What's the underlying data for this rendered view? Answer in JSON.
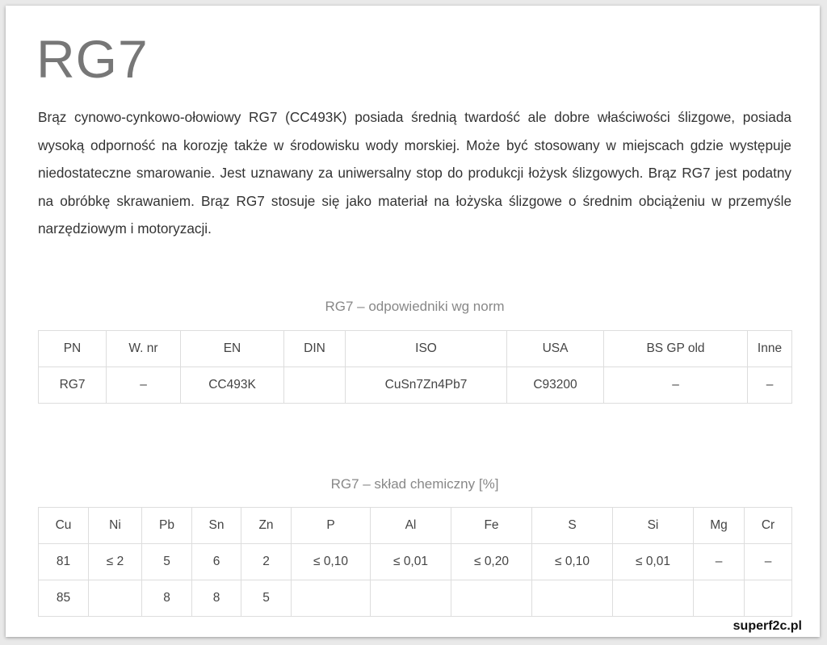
{
  "title": "RG7",
  "description": "Brąz cynowo-cynkowo-ołowiowy RG7 (CC493K) posiada średnią twardość ale dobre właściwości ślizgowe, posiada wysoką odporność na korozję także w środowisku wody morskiej. Może być stosowany w miejscach gdzie występuje niedostateczne smarowanie. Jest uznawany za uniwersalny stop do produkcji łożysk ślizgowych. Brąz RG7 jest podatny na obróbkę skrawaniem. Brąz RG7 stosuje się jako materiał na łożyska ślizgowe o średnim obciążeniu w przemyśle narzędziowym i motoryzacji.",
  "standards": {
    "caption": "RG7 – odpowiedniki wg norm",
    "headers": [
      "PN",
      "W. nr",
      "EN",
      "DIN",
      "ISO",
      "USA",
      "BS GP old",
      "Inne"
    ],
    "rows": [
      [
        "RG7",
        "–",
        "CC493K",
        "",
        "CuSn7Zn4Pb7",
        "C93200",
        "–",
        "–"
      ]
    ]
  },
  "composition": {
    "caption": "RG7 – skład chemiczny [%]",
    "headers": [
      "Cu",
      "Ni",
      "Pb",
      "Sn",
      "Zn",
      "P",
      "Al",
      "Fe",
      "S",
      "Si",
      "Mg",
      "Cr"
    ],
    "rows": [
      [
        "81",
        "≤ 2",
        "5",
        "6",
        "2",
        "≤ 0,10",
        "≤ 0,01",
        "≤ 0,20",
        "≤ 0,10",
        "≤ 0,01",
        "–",
        "–"
      ],
      [
        "85",
        "",
        "8",
        "8",
        "5",
        "",
        "",
        "",
        "",
        "",
        "",
        ""
      ]
    ]
  },
  "watermark": "superf2c.pl"
}
